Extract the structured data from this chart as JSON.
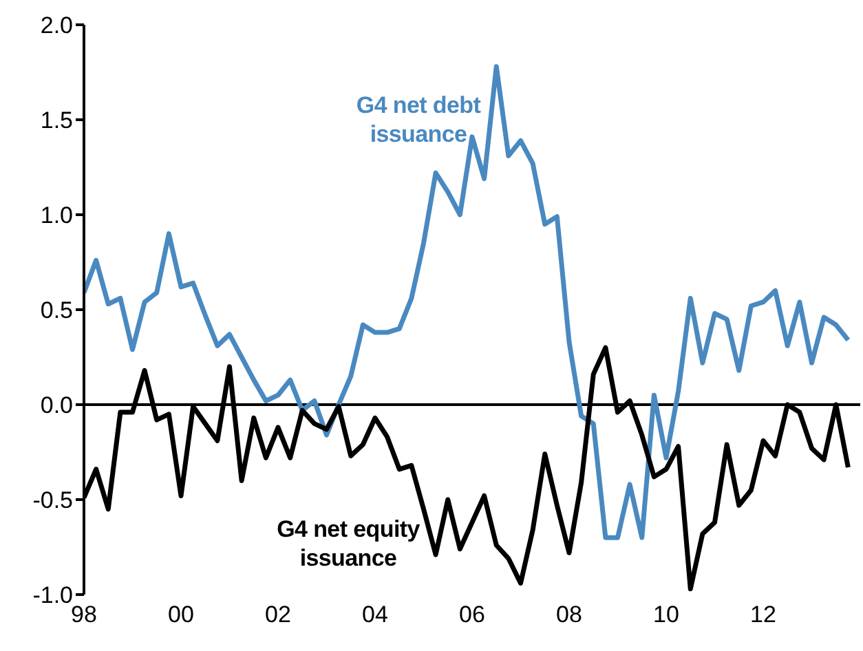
{
  "chart_data": {
    "type": "line",
    "x": [
      1998,
      1998.25,
      1998.5,
      1998.75,
      1999,
      1999.25,
      1999.5,
      1999.75,
      2000,
      2000.25,
      2000.5,
      2000.75,
      2001,
      2001.25,
      2001.5,
      2001.75,
      2002,
      2002.25,
      2002.5,
      2002.75,
      2003,
      2003.25,
      2003.5,
      2003.75,
      2004,
      2004.25,
      2004.5,
      2004.75,
      2005,
      2005.25,
      2005.5,
      2005.75,
      2006,
      2006.25,
      2006.5,
      2006.75,
      2007,
      2007.25,
      2007.5,
      2007.75,
      2008,
      2008.25,
      2008.5,
      2008.75,
      2009,
      2009.25,
      2009.5,
      2009.75,
      2010,
      2010.25,
      2010.5,
      2010.75,
      2011,
      2011.25,
      2011.5,
      2011.75,
      2012,
      2012.25,
      2012.5,
      2012.75,
      2013,
      2013.25,
      2013.5,
      2013.75
    ],
    "series": [
      {
        "name": "G4 net debt issuance",
        "color": "#4a89c0",
        "values": [
          0.59,
          0.76,
          0.53,
          0.56,
          0.29,
          0.54,
          0.59,
          0.9,
          0.62,
          0.64,
          0.47,
          0.31,
          0.37,
          0.25,
          0.13,
          0.02,
          0.05,
          0.13,
          -0.03,
          0.02,
          -0.16,
          0.0,
          0.15,
          0.42,
          0.38,
          0.38,
          0.4,
          0.56,
          0.85,
          1.22,
          1.12,
          1.0,
          1.41,
          1.19,
          1.78,
          1.31,
          1.39,
          1.27,
          0.95,
          0.99,
          0.33,
          -0.06,
          -0.1,
          -0.7,
          -0.7,
          -0.42,
          -0.7,
          0.05,
          -0.28,
          0.07,
          0.56,
          0.22,
          0.48,
          0.45,
          0.18,
          0.52,
          0.54,
          0.6,
          0.31,
          0.54,
          0.22,
          0.46,
          0.42,
          0.34
        ]
      },
      {
        "name": "G4 net equity issuance",
        "color": "#000000",
        "values": [
          -0.49,
          -0.34,
          -0.55,
          -0.04,
          -0.04,
          0.18,
          -0.08,
          -0.05,
          -0.48,
          -0.01,
          -0.1,
          -0.19,
          0.2,
          -0.4,
          -0.07,
          -0.28,
          -0.12,
          -0.28,
          -0.03,
          -0.1,
          -0.13,
          -0.01,
          -0.27,
          -0.21,
          -0.07,
          -0.17,
          -0.34,
          -0.32,
          -0.55,
          -0.79,
          -0.5,
          -0.76,
          -0.62,
          -0.48,
          -0.74,
          -0.81,
          -0.94,
          -0.66,
          -0.26,
          -0.53,
          -0.78,
          -0.41,
          0.16,
          0.3,
          -0.04,
          0.02,
          -0.16,
          -0.38,
          -0.34,
          -0.22,
          -0.97,
          -0.68,
          -0.62,
          -0.21,
          -0.53,
          -0.45,
          -0.19,
          -0.27,
          0.0,
          -0.04,
          -0.23,
          -0.29,
          0.0,
          -0.33
        ]
      }
    ],
    "xlim": [
      1998,
      2014
    ],
    "xticks": [
      {
        "value": 1998,
        "label": "98"
      },
      {
        "value": 2000,
        "label": "00"
      },
      {
        "value": 2002,
        "label": "02"
      },
      {
        "value": 2004,
        "label": "04"
      },
      {
        "value": 2006,
        "label": "06"
      },
      {
        "value": 2008,
        "label": "08"
      },
      {
        "value": 2010,
        "label": "10"
      },
      {
        "value": 2012,
        "label": "12"
      }
    ],
    "ylim": [
      -1,
      2
    ],
    "yticks": [
      {
        "value": -1,
        "label": "-1.0"
      },
      {
        "value": -0.5,
        "label": "-0.5"
      },
      {
        "value": 0,
        "label": "0.0"
      },
      {
        "value": 0.5,
        "label": "0.5"
      },
      {
        "value": 1,
        "label": "1.0"
      },
      {
        "value": 1.5,
        "label": "1.5"
      },
      {
        "value": 2,
        "label": "2.0"
      }
    ],
    "ref_lines": [
      {
        "axis": "y",
        "value": 0
      }
    ],
    "grid": false,
    "marker": "none",
    "line_style": "solid"
  }
}
